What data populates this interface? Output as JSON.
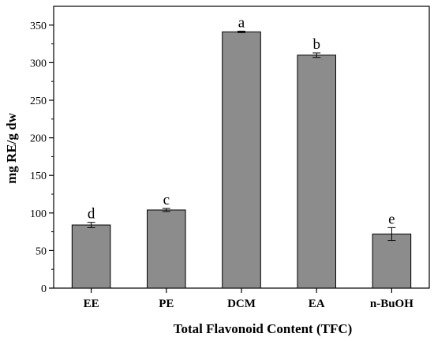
{
  "chart_data": {
    "type": "bar",
    "categories": [
      "EE",
      "PE",
      "DCM",
      "EA",
      "n-BuOH"
    ],
    "values": [
      84,
      104,
      341,
      310,
      72
    ],
    "errors": [
      3.5,
      2,
      1,
      3,
      8.5
    ],
    "annotations": [
      "d",
      "c",
      "a",
      "b",
      "e"
    ],
    "xlabel": "Total Flavonoid Content (TFC)",
    "ylabel": "mg RE/g dw",
    "ylim": [
      0,
      375
    ],
    "yticks": [
      0,
      50,
      100,
      150,
      200,
      250,
      300,
      350
    ],
    "grid": false,
    "legend": "none",
    "bar_color": "#8c8c8c",
    "edge_color": "#000000"
  }
}
